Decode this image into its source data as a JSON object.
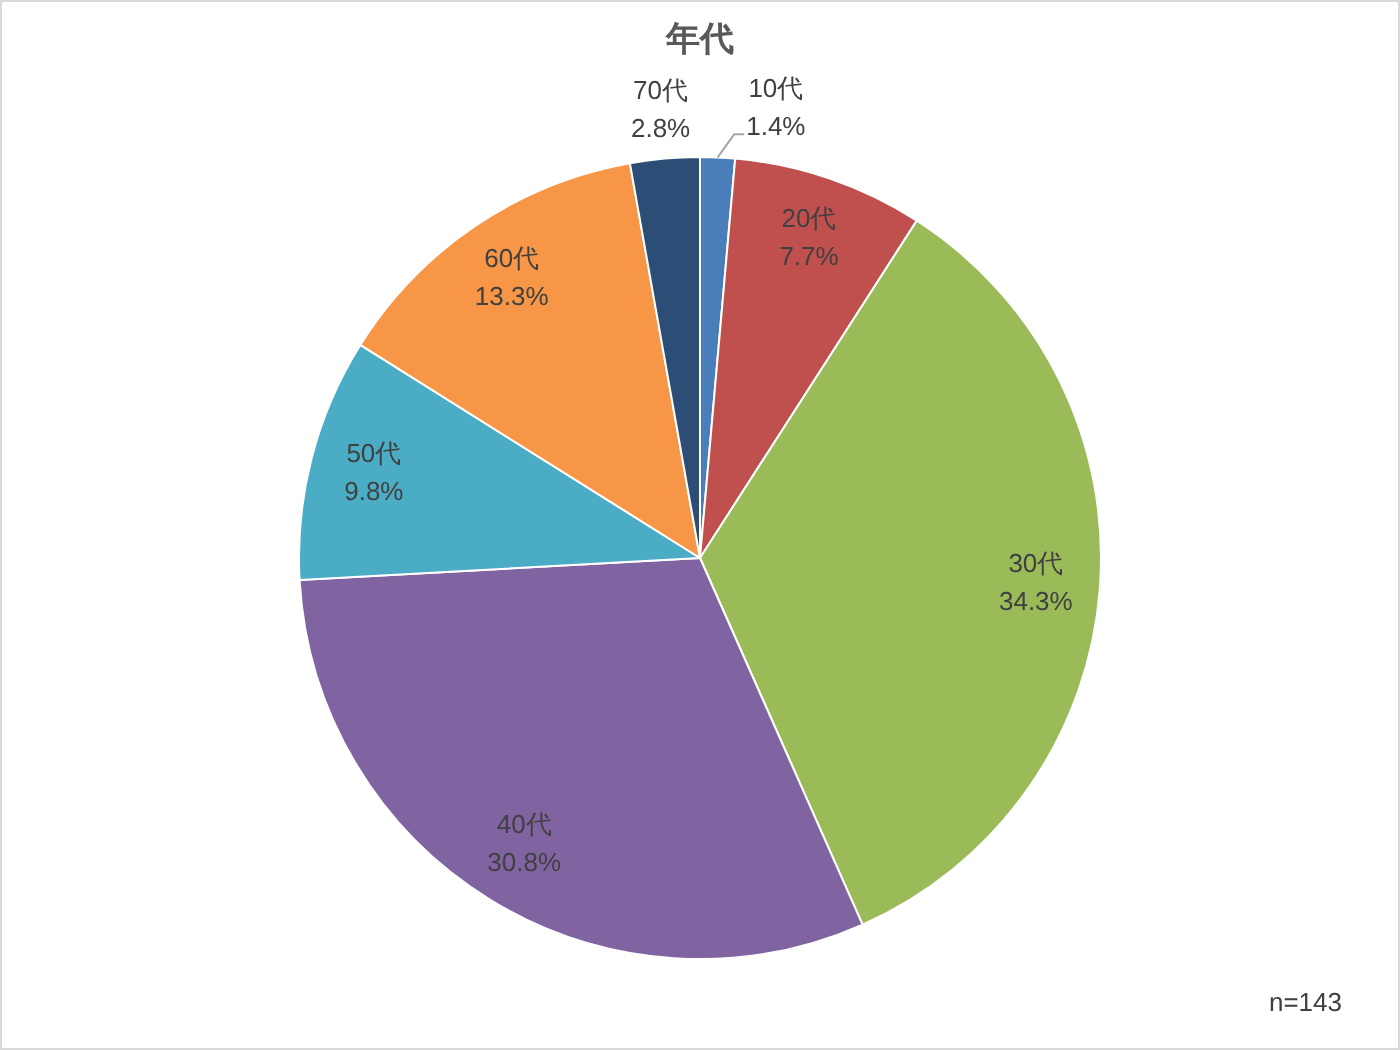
{
  "chart_data": {
    "type": "pie",
    "title": "年代",
    "categories": [
      "10代",
      "20代",
      "30代",
      "40代",
      "50代",
      "60代",
      "70代"
    ],
    "values": [
      1.4,
      7.7,
      34.3,
      30.8,
      9.8,
      13.3,
      2.8
    ],
    "colors": [
      "#4a7ebb",
      "#c0504d",
      "#9bbb59",
      "#8064a2",
      "#4bacc6",
      "#f79646",
      "#2c4d75"
    ],
    "value_labels": [
      "1.4%",
      "7.7%",
      "34.3%",
      "30.8%",
      "9.8%",
      "13.3%",
      "2.8%"
    ],
    "annotations": [
      "n=143"
    ]
  }
}
